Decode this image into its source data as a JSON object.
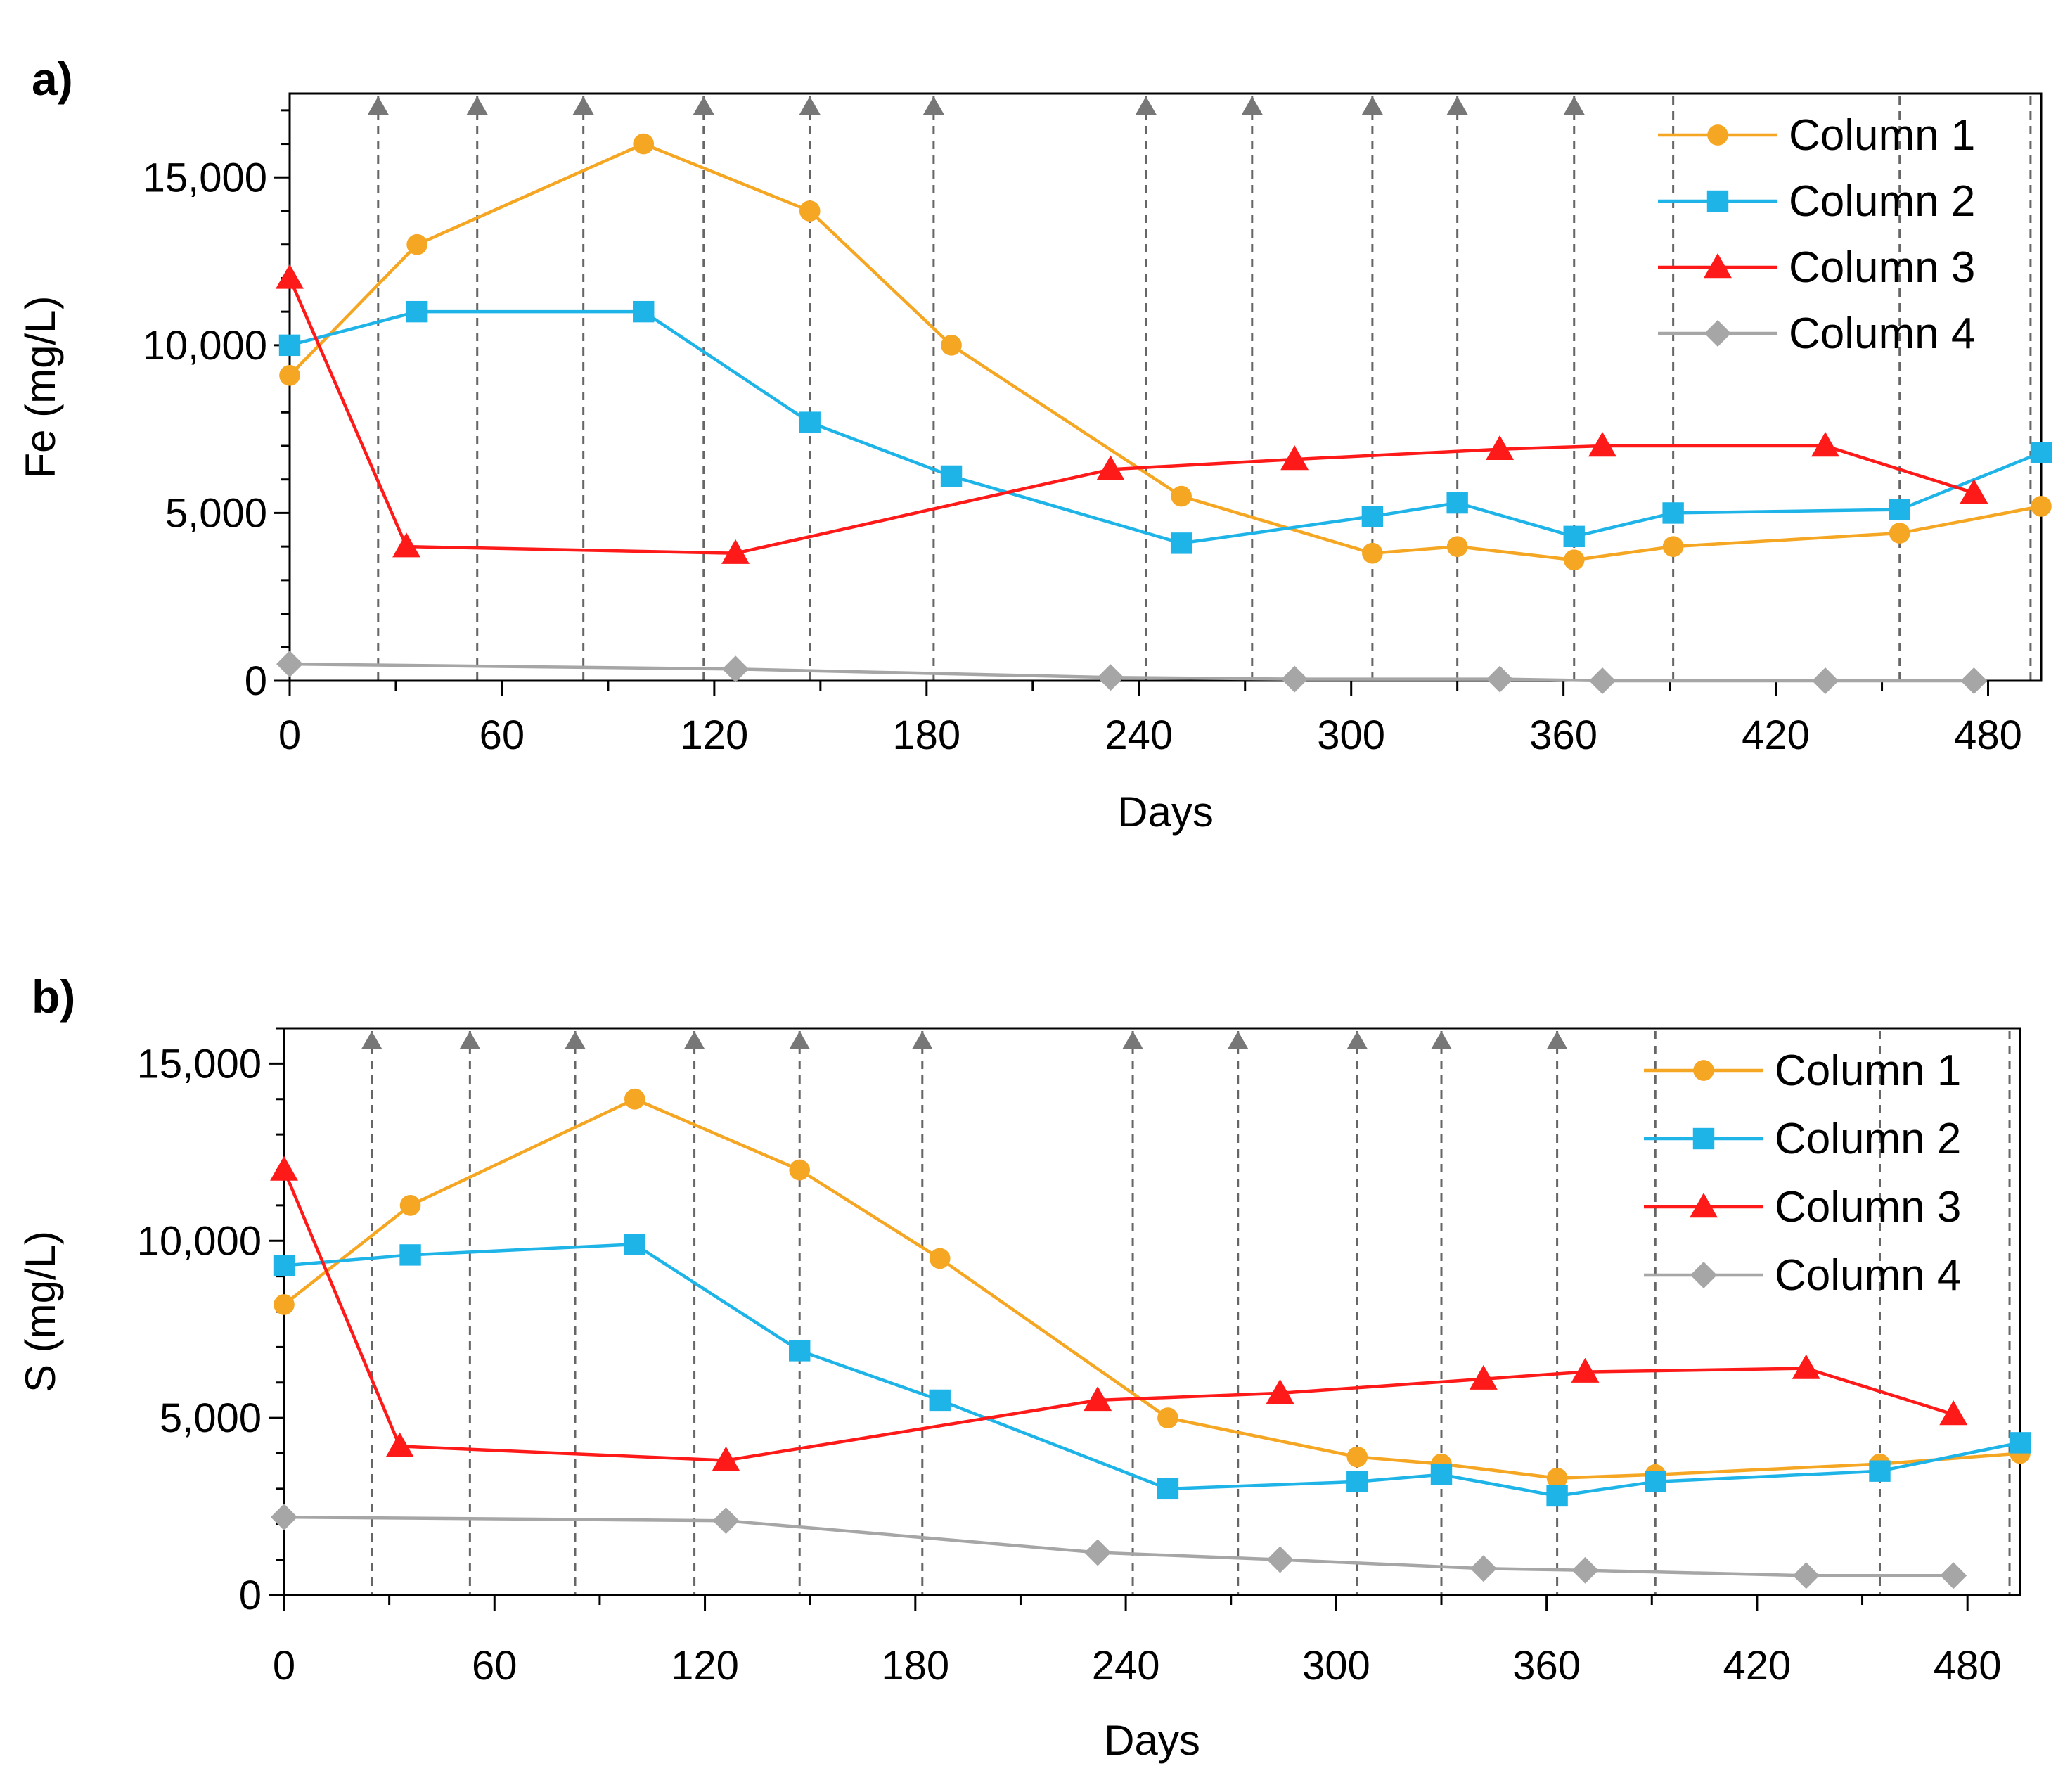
{
  "chart_data": [
    {
      "type": "line",
      "panel_label": "a)",
      "xlabel": "Days",
      "ylabel": "Fe (mg/L)",
      "xlim": [
        0,
        495
      ],
      "ylim": [
        0,
        17500
      ],
      "xticks": [
        0,
        60,
        120,
        180,
        240,
        300,
        360,
        420,
        480
      ],
      "xtick_labels": [
        "0",
        "60",
        "120",
        "180",
        "240",
        "300",
        "360",
        "420",
        "480"
      ],
      "yticks": [
        0,
        5000,
        10000,
        15000
      ],
      "ytick_labels": [
        "0",
        "5,000",
        "10,000",
        "15,000"
      ],
      "event_days": [
        25,
        53,
        83,
        117,
        147,
        182,
        242,
        272,
        306,
        330,
        363,
        391,
        455,
        492
      ],
      "event_arrows": [
        true,
        true,
        true,
        true,
        true,
        true,
        true,
        true,
        true,
        true,
        true,
        false,
        false,
        false
      ],
      "legend_position": "top-right",
      "series": [
        {
          "name": "Column 1",
          "color": "#F5A623",
          "marker": "circle",
          "x": [
            0,
            36,
            100,
            147,
            187,
            252,
            306,
            330,
            363,
            391,
            455,
            495
          ],
          "y": [
            9100,
            13000,
            16000,
            14000,
            10000,
            5500,
            3800,
            4000,
            3600,
            4000,
            4400,
            5200
          ]
        },
        {
          "name": "Column 2",
          "color": "#1EB4E8",
          "marker": "square",
          "x": [
            0,
            36,
            100,
            147,
            187,
            252,
            306,
            330,
            363,
            391,
            455,
            495
          ],
          "y": [
            10000,
            11000,
            11000,
            7700,
            6100,
            4100,
            4900,
            5300,
            4300,
            5000,
            5100,
            6800
          ]
        },
        {
          "name": "Column 3",
          "color": "#FF1A1A",
          "marker": "triangle",
          "x": [
            0,
            33,
            126,
            232,
            284,
            342,
            371,
            434,
            476
          ],
          "y": [
            12000,
            4000,
            3800,
            6300,
            6600,
            6900,
            7000,
            7000,
            5600
          ]
        },
        {
          "name": "Column 4",
          "color": "#A6A6A6",
          "marker": "diamond",
          "x": [
            0,
            126,
            232,
            284,
            342,
            371,
            434,
            476
          ],
          "y": [
            500,
            350,
            100,
            50,
            50,
            0,
            0,
            0
          ]
        }
      ]
    },
    {
      "type": "line",
      "panel_label": "b)",
      "xlabel": "Days",
      "ylabel": "S (mg/L)",
      "xlim": [
        0,
        495
      ],
      "ylim": [
        0,
        16000
      ],
      "xticks": [
        0,
        60,
        120,
        180,
        240,
        300,
        360,
        420,
        480
      ],
      "xtick_labels": [
        "0",
        "60",
        "120",
        "180",
        "240",
        "300",
        "360",
        "420",
        "480"
      ],
      "yticks": [
        0,
        5000,
        10000,
        15000
      ],
      "ytick_labels": [
        "0",
        "5,000",
        "10,000",
        "15,000"
      ],
      "event_days": [
        25,
        53,
        83,
        117,
        147,
        182,
        242,
        272,
        306,
        330,
        363,
        391,
        455,
        492
      ],
      "event_arrows": [
        true,
        true,
        true,
        true,
        true,
        true,
        true,
        true,
        true,
        true,
        true,
        false,
        false,
        false
      ],
      "legend_position": "top-right",
      "series": [
        {
          "name": "Column 1",
          "color": "#F5A623",
          "marker": "circle",
          "x": [
            0,
            36,
            100,
            147,
            187,
            252,
            306,
            330,
            363,
            391,
            455,
            495
          ],
          "y": [
            8200,
            11000,
            14000,
            12000,
            9500,
            5000,
            3900,
            3700,
            3300,
            3400,
            3700,
            4000
          ]
        },
        {
          "name": "Column 2",
          "color": "#1EB4E8",
          "marker": "square",
          "x": [
            0,
            36,
            100,
            147,
            187,
            252,
            306,
            330,
            363,
            391,
            455,
            495
          ],
          "y": [
            9300,
            9600,
            9900,
            6900,
            5500,
            3000,
            3200,
            3400,
            2800,
            3200,
            3500,
            4300
          ]
        },
        {
          "name": "Column 3",
          "color": "#FF1A1A",
          "marker": "triangle",
          "x": [
            0,
            33,
            126,
            232,
            284,
            342,
            371,
            434,
            476
          ],
          "y": [
            12000,
            4200,
            3800,
            5500,
            5700,
            6100,
            6300,
            6400,
            5100
          ]
        },
        {
          "name": "Column 4",
          "color": "#A6A6A6",
          "marker": "diamond",
          "x": [
            0,
            126,
            232,
            284,
            342,
            371,
            434,
            476
          ],
          "y": [
            2200,
            2100,
            1200,
            1000,
            750,
            700,
            550,
            550
          ]
        }
      ]
    }
  ]
}
